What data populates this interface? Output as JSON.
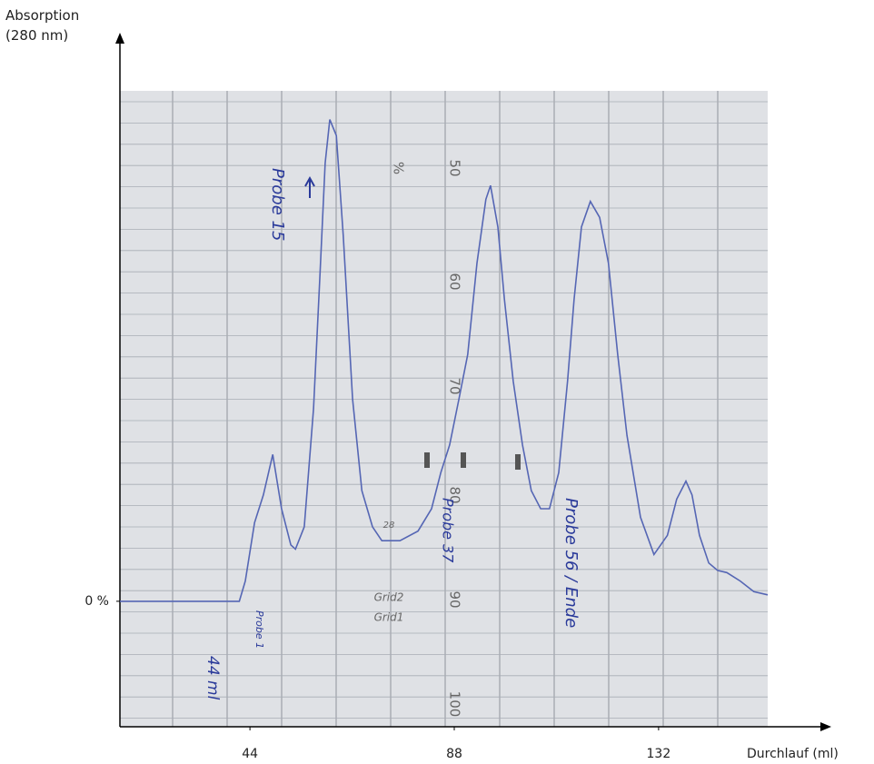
{
  "chart_data": {
    "type": "line",
    "y_label": "Absorption (280 nm)",
    "x_label": "Durchlauf (ml)",
    "color": "#5566b4",
    "xlim": [
      16,
      155.5
    ],
    "ylim": [
      -11.8,
      48
    ],
    "xticks": [
      44,
      88,
      132
    ],
    "yticks": [
      {
        "value": 0,
        "label": "0 %"
      }
    ],
    "x": [
      16.0,
      41.7,
      43.0,
      45.0,
      46.9,
      48.9,
      50.8,
      52.8,
      53.8,
      55.7,
      57.7,
      59.1,
      60.2,
      61.2,
      62.6,
      64.1,
      66.1,
      68.1,
      70.4,
      72.4,
      76.3,
      80.2,
      83.1,
      85.1,
      87.0,
      89.0,
      90.9,
      92.9,
      94.8,
      95.8,
      97.4,
      98.8,
      100.7,
      102.7,
      104.6,
      106.6,
      108.5,
      110.5,
      112.4,
      113.8,
      115.4,
      117.3,
      119.3,
      121.2,
      123.2,
      125.2,
      128.1,
      131.0,
      133.9,
      135.9,
      137.9,
      139.2,
      140.8,
      142.8,
      144.7,
      146.7,
      149.6,
      152.5,
      155.5
    ],
    "values": [
      0,
      0,
      1.9,
      7.4,
      10.0,
      13.8,
      8.7,
      5.3,
      4.9,
      7.0,
      18.1,
      30.9,
      41.2,
      45.3,
      43.8,
      34.4,
      19.0,
      10.4,
      7.0,
      5.7,
      5.7,
      6.6,
      8.7,
      12.1,
      14.7,
      19.0,
      23.2,
      31.8,
      37.8,
      39.1,
      35.2,
      28.4,
      20.7,
      14.7,
      10.4,
      8.7,
      8.7,
      12.1,
      20.7,
      28.4,
      35.2,
      37.6,
      36.1,
      31.8,
      23.2,
      15.6,
      7.9,
      4.4,
      6.2,
      9.6,
      11.3,
      10.0,
      6.2,
      3.6,
      2.9,
      2.7,
      1.9,
      0.9,
      0.6
    ],
    "annotations": [
      "Probe 15",
      "Probe 1",
      "44 ml",
      "Probe 37",
      "Probe 56 / Ende",
      "Grid2",
      "Grid1",
      "28"
    ],
    "paper_scale": [
      "%",
      "50",
      "60",
      "70",
      "80",
      "90",
      "100"
    ]
  }
}
